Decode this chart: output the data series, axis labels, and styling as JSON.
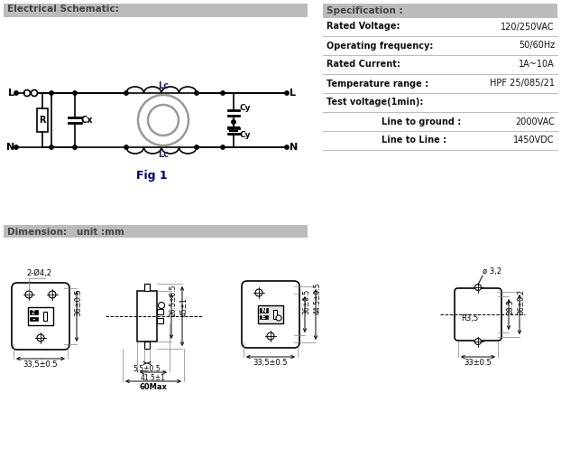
{
  "bg_color": "#ffffff",
  "header_bg": "#bbbbbb",
  "elec_title": "Electrical Schematic:",
  "dim_title": "Dimension:   unit :mm",
  "spec_title": "Specification :",
  "spec_rows": [
    {
      "label": "Rated Voltage:",
      "value": "120/250VAC",
      "indent": false
    },
    {
      "label": "Operating frequency:",
      "value": "50/60Hz",
      "indent": false
    },
    {
      "label": "Rated Current:",
      "value": "1A~10A",
      "indent": false
    },
    {
      "label": "Temperature range :",
      "value": "HPF 25/085/21",
      "indent": false
    },
    {
      "label": "Test voltage(1min):",
      "value": "",
      "indent": false
    },
    {
      "label": "Line to ground :",
      "value": "2000VAC",
      "indent": true
    },
    {
      "label": "Line to Line :",
      "value": "1450VDC",
      "indent": true
    }
  ],
  "fig_label": "Fig 1"
}
